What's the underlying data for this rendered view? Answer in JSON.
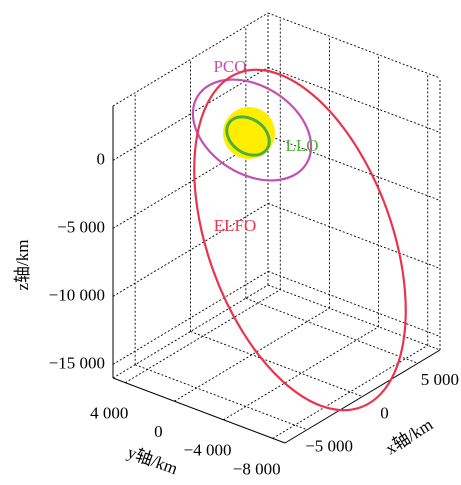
{
  "chart_data": {
    "type": "orbit3d",
    "xlabel": "x轴/km",
    "ylabel": "y轴/km",
    "zlabel": "z轴/km",
    "xlim": [
      -7000,
      7000
    ],
    "ylim": [
      -9000,
      5000
    ],
    "zlim": [
      -16000,
      4000
    ],
    "xticks": [
      {
        "value": -5000,
        "label": "−5 000"
      },
      0,
      {
        "value": 5000,
        "label": "5 000"
      }
    ],
    "yticks": [
      {
        "value": -8000,
        "label": "−8 000"
      },
      {
        "value": -4000,
        "label": "−4 000"
      },
      0,
      {
        "value": 4000,
        "label": "4 000"
      }
    ],
    "zticks": [
      {
        "value": -15000,
        "label": "−15 000"
      },
      {
        "value": -10000,
        "label": "−10 000"
      },
      {
        "value": -5000,
        "label": "−5 000"
      },
      0
    ],
    "grid": true,
    "series": [
      {
        "name": "PCO",
        "color": "#c251b3"
      },
      {
        "name": "LLO",
        "color": "#4daf3c"
      },
      {
        "name": "ELFO",
        "color": "#e8344c"
      }
    ]
  }
}
